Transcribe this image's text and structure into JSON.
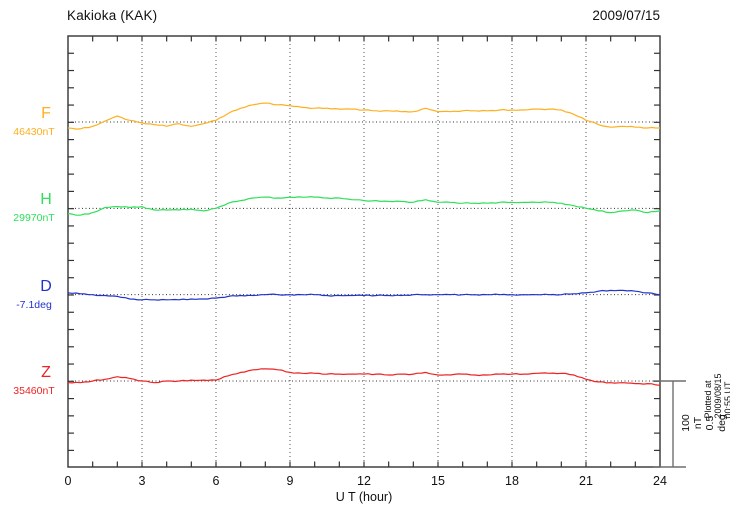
{
  "header": {
    "title": "Kakioka (KAK)",
    "date": "2009/07/15"
  },
  "axis": {
    "x_label": "U T (hour)",
    "x_ticks": [
      "0",
      "3",
      "6",
      "9",
      "12",
      "15",
      "18",
      "21",
      "24"
    ],
    "x_tick_hours": [
      0,
      3,
      6,
      9,
      12,
      15,
      18,
      21,
      24
    ]
  },
  "channels": [
    {
      "id": "F",
      "label": "F",
      "reference_label": "46430nT",
      "color": "#FFAF1E"
    },
    {
      "id": "H",
      "label": "H",
      "reference_label": "29970nT",
      "color": "#2FE05A"
    },
    {
      "id": "D",
      "label": "D",
      "reference_label": "-7.1deg",
      "color": "#2233CC"
    },
    {
      "id": "Z",
      "label": "Z",
      "reference_label": "35460nT",
      "color": "#EE2222"
    }
  ],
  "scale_bar": {
    "line1": "100 nT",
    "line2": "0.5 deg"
  },
  "footer_note": "Plotted at 2009/08/15 00:55 UT",
  "chart_data": {
    "type": "line",
    "title": "Kakioka (KAK) geomagnetic field components, 2009/07/15",
    "xlabel": "U T (hour)",
    "x_range": [
      0,
      24
    ],
    "x_tick_step": 3,
    "grid": "vertical dotted every 3 h; dotted reference line per channel",
    "scale": {
      "nT_per_division": 100,
      "deg_per_division": 0.5
    },
    "x_hours": [
      0,
      0.5,
      1,
      1.5,
      2,
      2.5,
      3,
      3.5,
      4,
      4.5,
      5,
      5.5,
      6,
      6.5,
      7,
      7.5,
      8,
      8.5,
      9,
      9.5,
      10,
      10.5,
      11,
      11.5,
      12,
      12.5,
      13,
      13.5,
      14,
      14.5,
      15,
      15.5,
      16,
      16.5,
      17,
      17.5,
      18,
      18.5,
      19,
      19.5,
      20,
      20.5,
      21,
      21.5,
      22,
      22.5,
      23,
      23.5,
      24
    ],
    "series": [
      {
        "name": "F",
        "unit": "nT",
        "reference": 46430,
        "values": [
          46423,
          46422,
          46425,
          46431,
          46437,
          46432,
          46429,
          46427,
          46425,
          46428,
          46425,
          46428,
          46432,
          46440,
          46446,
          46450,
          46452,
          46450,
          46449,
          46447,
          46446,
          46446,
          46445,
          46445,
          46444,
          46443,
          46443,
          46442,
          46442,
          46446,
          46442,
          46442,
          46443,
          46443,
          46443,
          46444,
          46444,
          46444,
          46445,
          46445,
          46444,
          46439,
          46432,
          46427,
          46424,
          46425,
          46424,
          46423,
          46423
        ]
      },
      {
        "name": "H",
        "unit": "nT",
        "reference": 29970,
        "values": [
          29964,
          29962,
          29965,
          29971,
          29972,
          29971,
          29972,
          29968,
          29968,
          29968,
          29969,
          29967,
          29970,
          29976,
          29979,
          29982,
          29983,
          29982,
          29983,
          29983,
          29983,
          29982,
          29982,
          29980,
          29979,
          29979,
          29978,
          29978,
          29977,
          29980,
          29977,
          29977,
          29976,
          29976,
          29976,
          29977,
          29977,
          29977,
          29977,
          29977,
          29976,
          29973,
          29970,
          29967,
          29965,
          29967,
          29968,
          29965,
          29967
        ]
      },
      {
        "name": "D",
        "unit": "deg",
        "reference": -7.1,
        "values": [
          -7.09,
          -7.095,
          -7.1,
          -7.105,
          -7.11,
          -7.125,
          -7.13,
          -7.13,
          -7.13,
          -7.13,
          -7.125,
          -7.125,
          -7.12,
          -7.11,
          -7.105,
          -7.105,
          -7.1,
          -7.1,
          -7.1,
          -7.1,
          -7.1,
          -7.105,
          -7.105,
          -7.105,
          -7.105,
          -7.105,
          -7.105,
          -7.105,
          -7.1,
          -7.1,
          -7.1,
          -7.1,
          -7.1,
          -7.1,
          -7.1,
          -7.1,
          -7.1,
          -7.1,
          -7.1,
          -7.1,
          -7.1,
          -7.095,
          -7.09,
          -7.08,
          -7.075,
          -7.075,
          -7.08,
          -7.09,
          -7.1
        ]
      },
      {
        "name": "Z",
        "unit": "nT",
        "reference": 35460,
        "values": [
          35458,
          35458,
          35460,
          35462,
          35465,
          35463,
          35460,
          35458,
          35460,
          35460,
          35461,
          35461,
          35461,
          35466,
          35470,
          35473,
          35474,
          35473,
          35470,
          35469,
          35469,
          35468,
          35468,
          35468,
          35468,
          35468,
          35467,
          35468,
          35468,
          35470,
          35467,
          35467,
          35468,
          35467,
          35467,
          35468,
          35468,
          35468,
          35469,
          35469,
          35469,
          35467,
          35462,
          35459,
          35458,
          35458,
          35457,
          35457,
          35455
        ]
      }
    ]
  }
}
